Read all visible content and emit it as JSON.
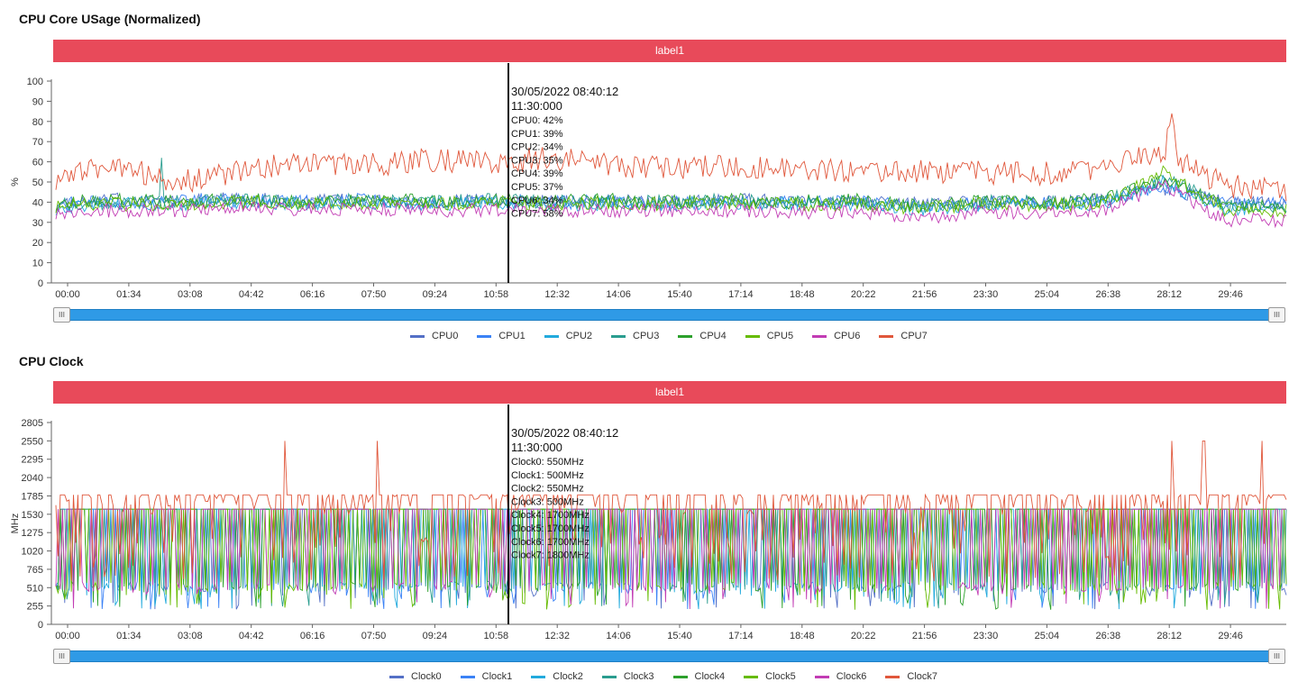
{
  "chart_data": [
    {
      "type": "line",
      "title": "CPU Core USage (Normalized)",
      "band_label": "label1",
      "ylabel": "%",
      "ylim": [
        0,
        100
      ],
      "yticks": [
        "0",
        "10",
        "20",
        "30",
        "40",
        "50",
        "60",
        "70",
        "80",
        "90",
        "100"
      ],
      "xticks": [
        "00:00",
        "01:34",
        "03:08",
        "04:42",
        "06:16",
        "07:50",
        "09:24",
        "10:58",
        "12:32",
        "14:06",
        "15:40",
        "17:14",
        "18:48",
        "20:22",
        "21:56",
        "23:30",
        "25:04",
        "26:38",
        "28:12",
        "29:46"
      ],
      "grid": false,
      "legend_position": "bottom-center",
      "tooltip": {
        "datetime": "30/05/2022 08:40:12",
        "time": "11:30:000",
        "lines": [
          "CPU0: 42%",
          "CPU1: 39%",
          "CPU2: 34%",
          "CPU3: 35%",
          "CPU4: 39%",
          "CPU5: 37%",
          "CPU6: 34%",
          "CPU7: 58%"
        ]
      },
      "series": [
        {
          "name": "CPU0",
          "color": "#5470c6",
          "baseline": 40,
          "values": [
            38,
            41,
            40,
            42,
            40,
            41,
            40,
            41,
            40,
            41,
            40,
            41,
            40,
            40,
            39,
            40,
            40,
            41,
            47,
            40,
            40
          ]
        },
        {
          "name": "CPU1",
          "color": "#3b82f6",
          "baseline": 40,
          "values": [
            39,
            40,
            41,
            41,
            40,
            41,
            40,
            41,
            40,
            40,
            40,
            40,
            40,
            40,
            38,
            40,
            40,
            40,
            48,
            39,
            40
          ]
        },
        {
          "name": "CPU2",
          "color": "#22aadd",
          "baseline": 39,
          "values": [
            37,
            39,
            39,
            40,
            39,
            40,
            39,
            40,
            39,
            39,
            39,
            40,
            39,
            39,
            36,
            39,
            39,
            39,
            50,
            37,
            37
          ]
        },
        {
          "name": "CPU3",
          "color": "#2a9d8f",
          "baseline": 40,
          "values": [
            39,
            40,
            40,
            41,
            40,
            41,
            40,
            41,
            40,
            40,
            40,
            41,
            40,
            40,
            38,
            40,
            40,
            40,
            52,
            38,
            38
          ]
        },
        {
          "name": "CPU4",
          "color": "#2ca02c",
          "baseline": 40,
          "values": [
            40,
            41,
            40,
            41,
            40,
            41,
            41,
            41,
            40,
            41,
            40,
            41,
            40,
            41,
            38,
            40,
            40,
            41,
            51,
            38,
            38
          ]
        },
        {
          "name": "CPU5",
          "color": "#66bb00",
          "baseline": 39,
          "values": [
            38,
            39,
            39,
            40,
            39,
            40,
            39,
            40,
            39,
            40,
            39,
            40,
            39,
            39,
            37,
            39,
            39,
            39,
            55,
            36,
            36
          ]
        },
        {
          "name": "CPU6",
          "color": "#c23cb4",
          "baseline": 36,
          "values": [
            35,
            36,
            36,
            37,
            36,
            37,
            36,
            36,
            36,
            36,
            36,
            36,
            35,
            35,
            32,
            35,
            35,
            36,
            48,
            31,
            31
          ]
        },
        {
          "name": "CPU7",
          "color": "#e0573b",
          "baseline": 57,
          "values": [
            52,
            58,
            50,
            55,
            60,
            58,
            61,
            59,
            62,
            58,
            57,
            58,
            57,
            56,
            55,
            55,
            54,
            56,
            66,
            48,
            46
          ]
        }
      ]
    },
    {
      "type": "line",
      "title": "CPU Clock",
      "band_label": "label1",
      "ylabel": "MHz",
      "ylim": [
        0,
        2805
      ],
      "yticks": [
        "0",
        "255",
        "510",
        "765",
        "1020",
        "1275",
        "1530",
        "1785",
        "2040",
        "2295",
        "2550",
        "2805"
      ],
      "xticks": [
        "00:00",
        "01:34",
        "03:08",
        "04:42",
        "06:16",
        "07:50",
        "09:24",
        "10:58",
        "12:32",
        "14:06",
        "15:40",
        "17:14",
        "18:48",
        "20:22",
        "21:56",
        "23:30",
        "25:04",
        "26:38",
        "28:12",
        "29:46"
      ],
      "grid": false,
      "legend_position": "bottom-center",
      "tooltip": {
        "datetime": "30/05/2022 08:40:12",
        "time": "11:30:000",
        "lines": [
          "Clock0: 550MHz",
          "Clock1: 500MHz",
          "Clock2: 550MHz",
          "Clock3: 500MHz",
          "Clock4: 1700MHz",
          "Clock5: 1700MHz",
          "Clock6: 1700MHz",
          "Clock7: 1800MHz"
        ]
      },
      "series": [
        {
          "name": "Clock0",
          "color": "#5470c6",
          "high": 1600
        },
        {
          "name": "Clock1",
          "color": "#3b82f6",
          "high": 1600
        },
        {
          "name": "Clock2",
          "color": "#22aadd",
          "high": 1600
        },
        {
          "name": "Clock3",
          "color": "#2a9d8f",
          "high": 1600
        },
        {
          "name": "Clock4",
          "color": "#2ca02c",
          "high": 1600
        },
        {
          "name": "Clock5",
          "color": "#66bb00",
          "high": 1600
        },
        {
          "name": "Clock6",
          "color": "#c23cb4",
          "high": 1600
        },
        {
          "name": "Clock7",
          "color": "#e0573b",
          "high": 1800,
          "spikes": [
            2550
          ]
        }
      ]
    }
  ]
}
